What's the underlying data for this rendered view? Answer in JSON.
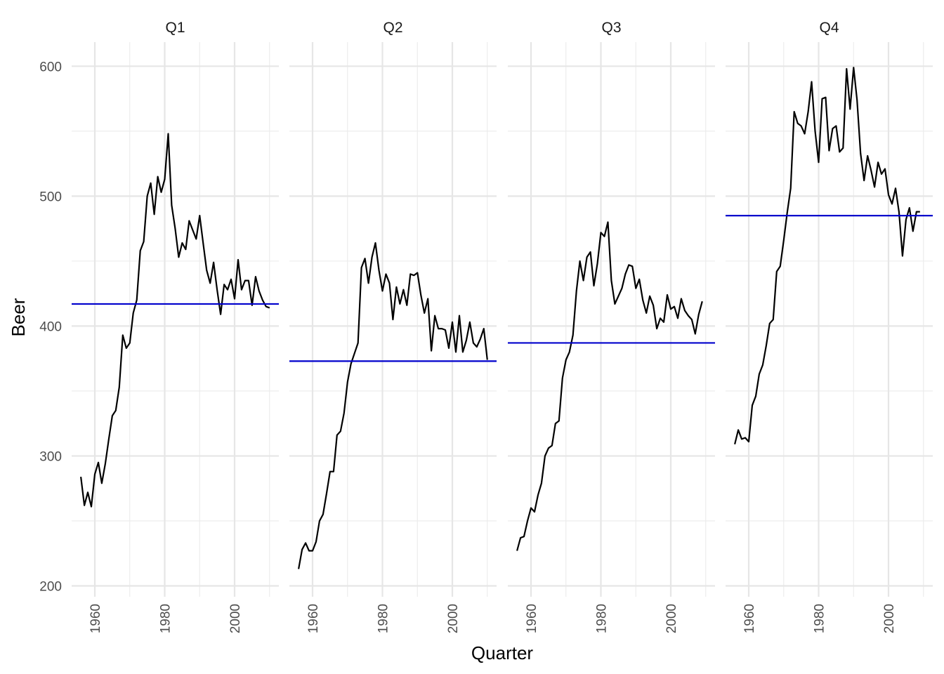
{
  "chart_data": {
    "type": "line",
    "xlabel": "Quarter",
    "ylabel": "Beer",
    "ylim": [
      200,
      610
    ],
    "yticks": [
      200,
      300,
      400,
      500,
      600
    ],
    "xlim": [
      1952,
      2012
    ],
    "xticks": [
      1960,
      1980,
      2000
    ],
    "x": [
      1956,
      1957,
      1958,
      1959,
      1960,
      1961,
      1962,
      1963,
      1964,
      1965,
      1966,
      1967,
      1968,
      1969,
      1970,
      1971,
      1972,
      1973,
      1974,
      1975,
      1976,
      1977,
      1978,
      1979,
      1980,
      1981,
      1982,
      1983,
      1984,
      1985,
      1986,
      1987,
      1988,
      1989,
      1990,
      1991,
      1992,
      1993,
      1994,
      1995,
      1996,
      1997,
      1998,
      1999,
      2000,
      2001,
      2002,
      2003,
      2004,
      2005,
      2006,
      2007,
      2008,
      2009,
      2010
    ],
    "grid": true,
    "colors": {
      "series": "#000000",
      "mean": "#0000cc",
      "grid": "#ebebeb"
    },
    "facets": [
      {
        "label": "Q1",
        "mean": 417,
        "values": [
          284,
          262,
          272,
          261,
          286,
          295,
          279,
          294,
          313,
          331,
          335,
          353,
          393,
          383,
          387,
          410,
          420,
          458,
          465,
          500,
          510,
          486,
          515,
          503,
          513,
          548,
          493,
          475,
          453,
          464,
          459,
          481,
          474,
          467,
          485,
          464,
          443,
          433,
          449,
          428,
          409,
          432,
          428,
          436,
          421,
          451,
          428,
          435,
          435,
          416,
          438,
          427,
          420,
          415,
          414
        ]
      },
      {
        "label": "Q2",
        "mean": 373,
        "values": [
          213,
          228,
          233,
          227,
          227,
          234,
          250,
          255,
          271,
          288,
          288,
          316,
          319,
          333,
          357,
          371,
          379,
          387,
          445,
          452,
          433,
          453,
          464,
          443,
          427,
          440,
          433,
          405,
          430,
          417,
          428,
          416,
          440,
          439,
          441,
          424,
          410,
          421,
          381,
          408,
          398,
          398,
          397,
          383,
          403,
          380,
          408,
          380,
          389,
          403,
          387,
          384,
          390,
          398,
          374
        ]
      },
      {
        "label": "Q3",
        "mean": 387,
        "values": [
          227,
          237,
          238,
          250,
          260,
          257,
          270,
          279,
          300,
          306,
          308,
          325,
          327,
          360,
          374,
          380,
          393,
          427,
          450,
          435,
          453,
          457,
          431,
          448,
          472,
          469,
          480,
          435,
          417,
          423,
          429,
          440,
          447,
          446,
          429,
          436,
          420,
          410,
          423,
          416,
          398,
          406,
          403,
          424,
          413,
          415,
          406,
          421,
          412,
          408,
          405,
          394,
          409,
          419,
          null
        ]
      },
      {
        "label": "Q4",
        "mean": 485,
        "values": [
          309,
          320,
          313,
          314,
          311,
          339,
          346,
          363,
          370,
          385,
          402,
          405,
          442,
          446,
          466,
          487,
          506,
          565,
          556,
          554,
          548,
          565,
          588,
          550,
          526,
          575,
          576,
          535,
          552,
          554,
          534,
          537,
          598,
          567,
          599,
          574,
          533,
          512,
          531,
          520,
          507,
          526,
          517,
          521,
          501,
          494,
          506,
          488,
          454,
          482,
          491,
          473,
          488,
          488,
          null
        ]
      }
    ]
  }
}
